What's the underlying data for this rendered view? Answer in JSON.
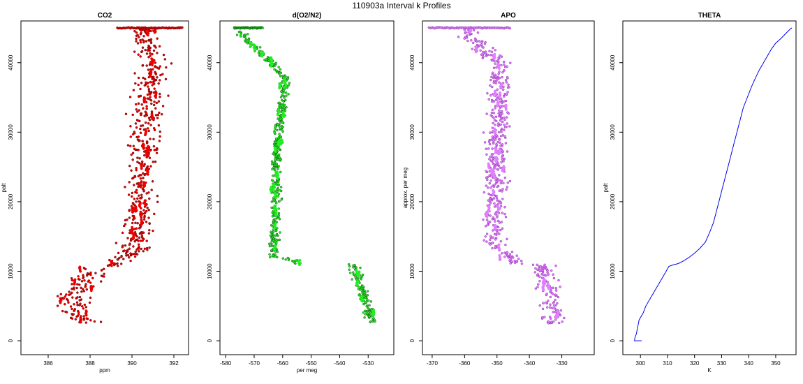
{
  "figure_title": "110903a   Interval k Profiles",
  "chart_data": [
    {
      "type": "scatter",
      "title": "CO2",
      "xlabel": "ppm",
      "ylabel": "palt",
      "xlim": [
        384.7,
        392.7
      ],
      "ylim": [
        -2000,
        46000
      ],
      "xticks": [
        386,
        388,
        390,
        392
      ],
      "yticks": [
        0,
        10000,
        20000,
        30000,
        40000
      ],
      "color": "#ee0000",
      "outline": "#660000",
      "grid": false,
      "segments": [
        {
          "y": [
            2500,
            3500
          ],
          "xc": [
            387.8,
            387.4
          ],
          "xw": 1.2
        },
        {
          "y": [
            3500,
            6000
          ],
          "xc": [
            387.4,
            387.1
          ],
          "xw": 1.3
        },
        {
          "y": [
            6000,
            10500
          ],
          "xc": [
            387.1,
            388.2
          ],
          "xw": 1.2
        },
        {
          "y": [
            10500,
            12500
          ],
          "xc": [
            388.6,
            390.0
          ],
          "xw": 0.8
        },
        {
          "y": [
            12500,
            40000
          ],
          "xc": [
            390.1,
            391.0
          ],
          "xw": 1.1
        },
        {
          "y": [
            40000,
            44800
          ],
          "xc": [
            390.9,
            390.5
          ],
          "xw": 1.0
        }
      ],
      "top_band": {
        "y": 45000,
        "x_range": [
          389.3,
          392.4
        ]
      }
    },
    {
      "type": "scatter",
      "title": "d(O2/N2)",
      "xlabel": "per meg",
      "ylabel": "",
      "xlim": [
        -582,
        -521
      ],
      "ylim": [
        -2000,
        46000
      ],
      "xticks": [
        -580,
        -570,
        -560,
        -550,
        -540,
        -530
      ],
      "yticks": [
        0,
        10000,
        20000,
        30000,
        40000
      ],
      "color": "#22ee22",
      "outline": "#115511",
      "grid": false,
      "segments": [
        {
          "y": [
            2500,
            5500
          ],
          "xc": [
            -529,
            -530
          ],
          "xw": 3
        },
        {
          "y": [
            5500,
            11000
          ],
          "xc": [
            -531,
            -535
          ],
          "xw": 3
        },
        {
          "y": [
            11000,
            12000
          ],
          "xc": [
            -553,
            -560
          ],
          "xw": 3
        },
        {
          "y": [
            12000,
            28000
          ],
          "xc": [
            -563,
            -562
          ],
          "xw": 2.5
        },
        {
          "y": [
            28000,
            38000
          ],
          "xc": [
            -562,
            -559
          ],
          "xw": 2.5
        },
        {
          "y": [
            38000,
            41000
          ],
          "xc": [
            -560,
            -566
          ],
          "xw": 2.5
        },
        {
          "y": [
            41000,
            44500
          ],
          "xc": [
            -567,
            -575
          ],
          "xw": 2.5
        }
      ],
      "top_band": {
        "y": 45000,
        "x_range": [
          -577,
          -567
        ]
      }
    },
    {
      "type": "scatter",
      "title": "APO",
      "xlabel": "",
      "ylabel": "approx. per meg",
      "xlim": [
        -373,
        -320
      ],
      "ylim": [
        -2000,
        46000
      ],
      "xticks": [
        -370,
        -360,
        -350,
        -340,
        -330
      ],
      "yticks": [
        0,
        10000,
        20000,
        30000,
        40000
      ],
      "color": "#e080ff",
      "outline": "#8a2aa8",
      "grid": false,
      "segments": [
        {
          "y": [
            2500,
            11000
          ],
          "xc": [
            -332,
            -336
          ],
          "xw": 5
        },
        {
          "y": [
            11000,
            14000
          ],
          "xc": [
            -345,
            -350
          ],
          "xw": 4.5
        },
        {
          "y": [
            14000,
            40000
          ],
          "xc": [
            -351,
            -349
          ],
          "xw": 5
        },
        {
          "y": [
            40000,
            44800
          ],
          "xc": [
            -351,
            -360
          ],
          "xw": 5
        }
      ],
      "top_band": {
        "y": 45000,
        "x_range": [
          -371,
          -346
        ]
      }
    },
    {
      "type": "line",
      "title": "THETA",
      "xlabel": "K",
      "ylabel": "palt",
      "xlim": [
        293.5,
        357.5
      ],
      "ylim": [
        -2000,
        46000
      ],
      "xticks": [
        300,
        310,
        320,
        330,
        340,
        350
      ],
      "yticks": [
        0,
        10000,
        20000,
        30000,
        40000
      ],
      "color": "#0000ee",
      "grid": false,
      "x": [
        300.5,
        297.8,
        298,
        298.5,
        299,
        299.5,
        301,
        302,
        303.5,
        305,
        306.5,
        308,
        309.5,
        310.5,
        312,
        314,
        316,
        318,
        320,
        322,
        324,
        325.5,
        327,
        328,
        329,
        330,
        331,
        332,
        333,
        334,
        335,
        336,
        337,
        338,
        339.5,
        341,
        342.5,
        344,
        345.5,
        347,
        348.5,
        350,
        352,
        354,
        355.5,
        356
      ],
      "y": [
        0,
        0,
        500,
        1000,
        2000,
        3000,
        4000,
        5000,
        6000,
        7000,
        8000,
        9000,
        10000,
        10700,
        10900,
        11100,
        11500,
        12000,
        12600,
        13300,
        14200,
        15500,
        17000,
        18500,
        20000,
        21500,
        23000,
        24500,
        26000,
        27500,
        29000,
        30500,
        32000,
        33500,
        35000,
        36500,
        37800,
        39000,
        40000,
        41000,
        42000,
        42800,
        43500,
        44300,
        44900,
        45000
      ]
    }
  ]
}
